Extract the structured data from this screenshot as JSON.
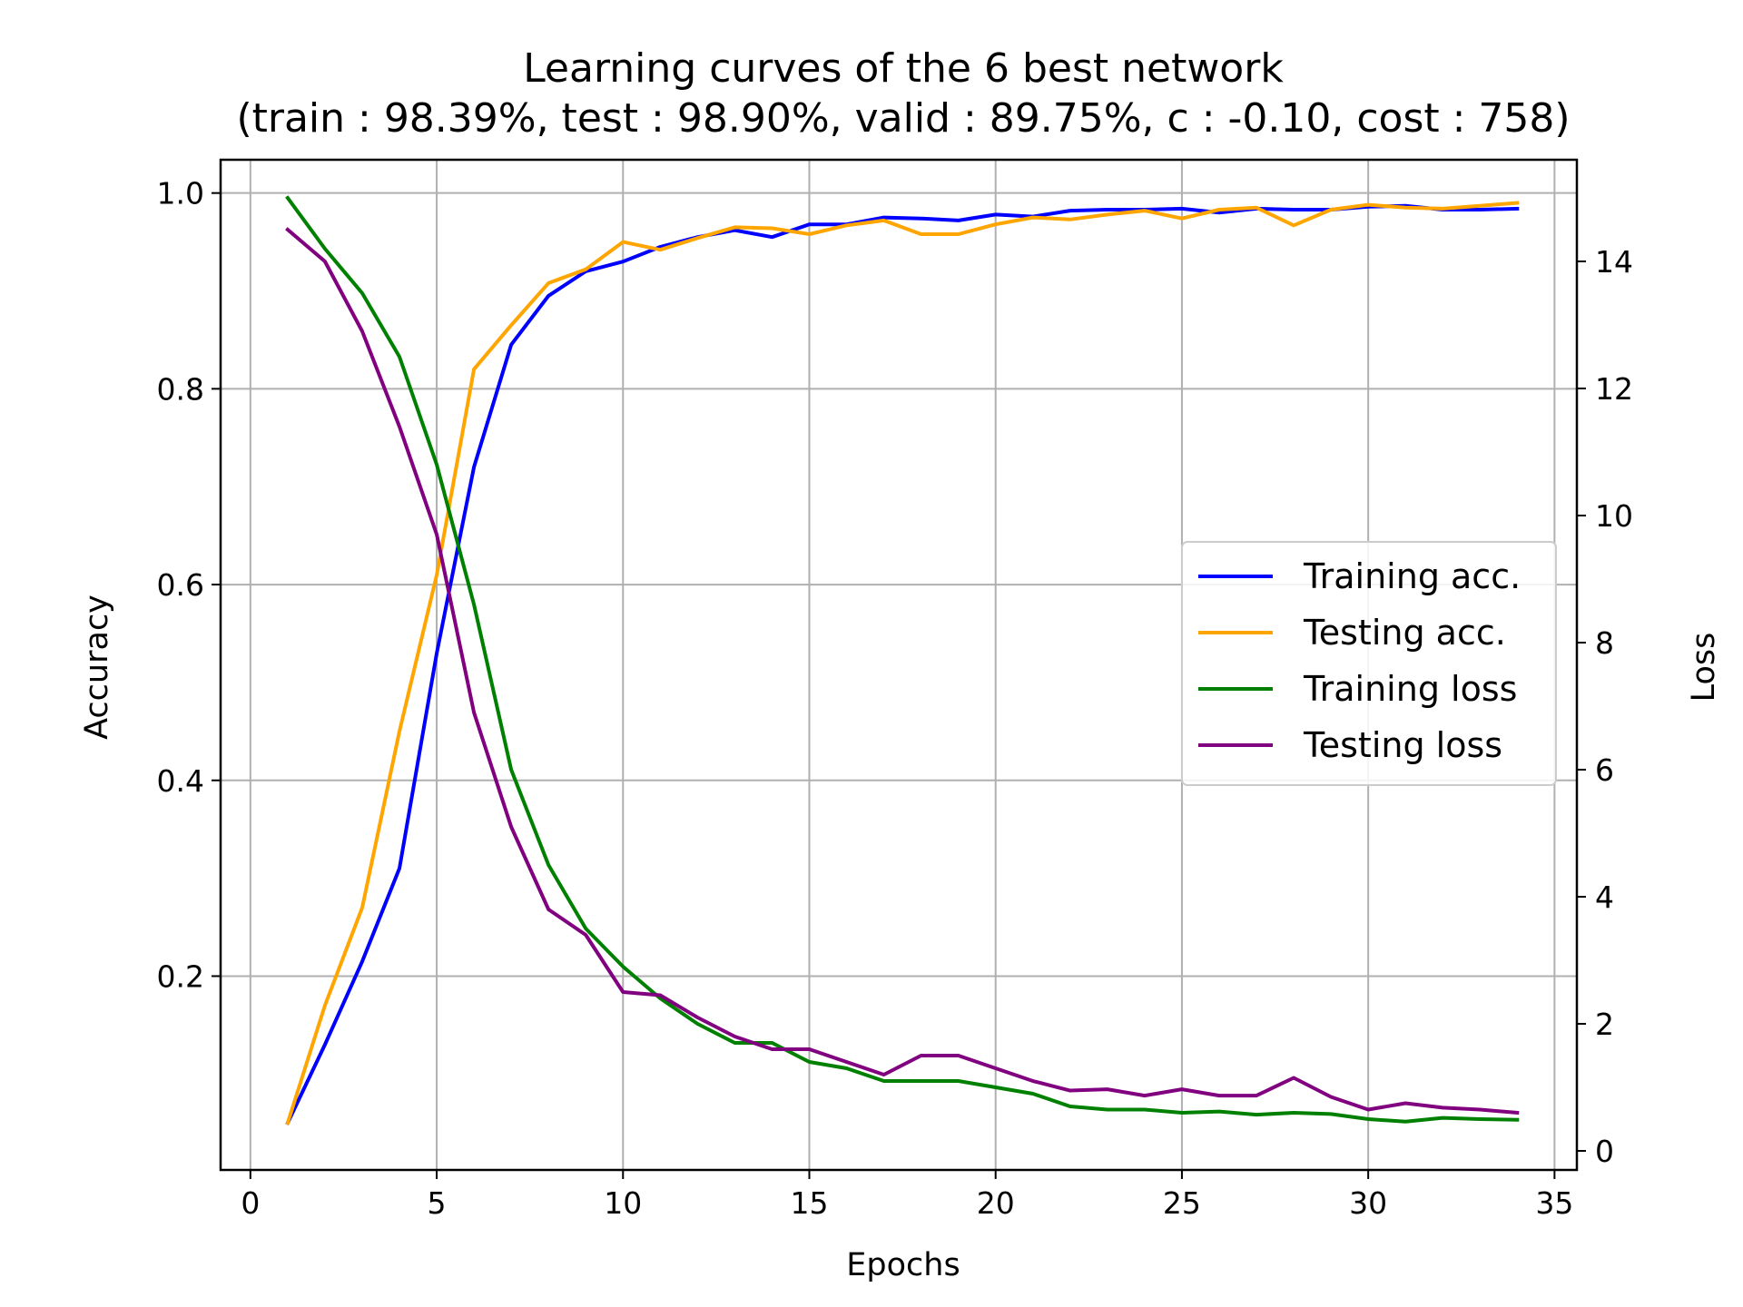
{
  "chart_data": {
    "type": "line",
    "title": "Learning curves of the 6 best network",
    "subtitle": "(train : 98.39%, test : 98.90%, valid : 89.75%, c : -0.10, cost :  758)",
    "xlabel": "Epochs",
    "ylabel": "Accuracy",
    "y2label": "Loss",
    "xlim": [
      -0.8,
      35.6
    ],
    "ylim": [
      0.002,
      1.034
    ],
    "y2lim": [
      -0.3,
      15.6
    ],
    "xticks": [
      0,
      5,
      10,
      15,
      20,
      25,
      30,
      35
    ],
    "yticks": [
      0.2,
      0.4,
      0.6,
      0.8,
      1.0
    ],
    "y2ticks": [
      0,
      2,
      4,
      6,
      8,
      10,
      12,
      14
    ],
    "grid": true,
    "legend_position": "center-right",
    "series": [
      {
        "name": "Training acc.",
        "axis": "left",
        "color": "#0000ff",
        "x": [
          1,
          2,
          3,
          4,
          5,
          6,
          7,
          8,
          9,
          10,
          11,
          12,
          13,
          14,
          15,
          16,
          17,
          18,
          19,
          20,
          21,
          22,
          23,
          24,
          25,
          26,
          27,
          28,
          29,
          30,
          31,
          32,
          33,
          34
        ],
        "values": [
          0.05,
          0.13,
          0.215,
          0.31,
          0.53,
          0.72,
          0.845,
          0.895,
          0.92,
          0.93,
          0.945,
          0.955,
          0.962,
          0.955,
          0.968,
          0.968,
          0.975,
          0.974,
          0.972,
          0.978,
          0.976,
          0.982,
          0.983,
          0.983,
          0.984,
          0.98,
          0.984,
          0.983,
          0.983,
          0.986,
          0.987,
          0.983,
          0.983,
          0.984
        ]
      },
      {
        "name": "Testing acc.",
        "axis": "left",
        "color": "#ffa500",
        "x": [
          1,
          2,
          3,
          4,
          5,
          6,
          7,
          8,
          9,
          10,
          11,
          12,
          13,
          14,
          15,
          16,
          17,
          18,
          19,
          20,
          21,
          22,
          23,
          24,
          25,
          26,
          27,
          28,
          29,
          30,
          31,
          32,
          33,
          34
        ],
        "values": [
          0.05,
          0.17,
          0.27,
          0.45,
          0.61,
          0.82,
          0.865,
          0.908,
          0.922,
          0.95,
          0.942,
          0.954,
          0.965,
          0.964,
          0.958,
          0.967,
          0.972,
          0.958,
          0.958,
          0.968,
          0.975,
          0.973,
          0.978,
          0.982,
          0.974,
          0.983,
          0.985,
          0.967,
          0.983,
          0.988,
          0.985,
          0.984,
          0.987,
          0.99
        ]
      },
      {
        "name": "Training loss",
        "axis": "right",
        "color": "#008000",
        "x": [
          1,
          2,
          3,
          4,
          5,
          6,
          7,
          8,
          9,
          10,
          11,
          12,
          13,
          14,
          15,
          16,
          17,
          18,
          19,
          20,
          21,
          22,
          23,
          24,
          25,
          26,
          27,
          28,
          29,
          30,
          31,
          32,
          33,
          34
        ],
        "values": [
          15.0,
          14.2,
          13.5,
          12.5,
          10.8,
          8.6,
          6.0,
          4.5,
          3.5,
          2.9,
          2.4,
          2.0,
          1.7,
          1.7,
          1.4,
          1.3,
          1.1,
          1.1,
          1.1,
          1.0,
          0.9,
          0.7,
          0.65,
          0.65,
          0.6,
          0.62,
          0.57,
          0.6,
          0.58,
          0.5,
          0.46,
          0.52,
          0.5,
          0.49
        ]
      },
      {
        "name": "Testing loss",
        "axis": "right",
        "color": "#800080",
        "x": [
          1,
          2,
          3,
          4,
          5,
          6,
          7,
          8,
          9,
          10,
          11,
          12,
          13,
          14,
          15,
          16,
          17,
          18,
          19,
          20,
          21,
          22,
          23,
          24,
          25,
          26,
          27,
          28,
          29,
          30,
          31,
          32,
          33,
          34
        ],
        "values": [
          14.5,
          14.0,
          12.9,
          11.4,
          9.7,
          6.9,
          5.1,
          3.8,
          3.4,
          2.5,
          2.45,
          2.1,
          1.8,
          1.6,
          1.6,
          1.4,
          1.2,
          1.5,
          1.5,
          1.3,
          1.1,
          0.95,
          0.97,
          0.87,
          0.97,
          0.87,
          0.87,
          1.15,
          0.85,
          0.65,
          0.75,
          0.68,
          0.65,
          0.6
        ]
      }
    ]
  }
}
